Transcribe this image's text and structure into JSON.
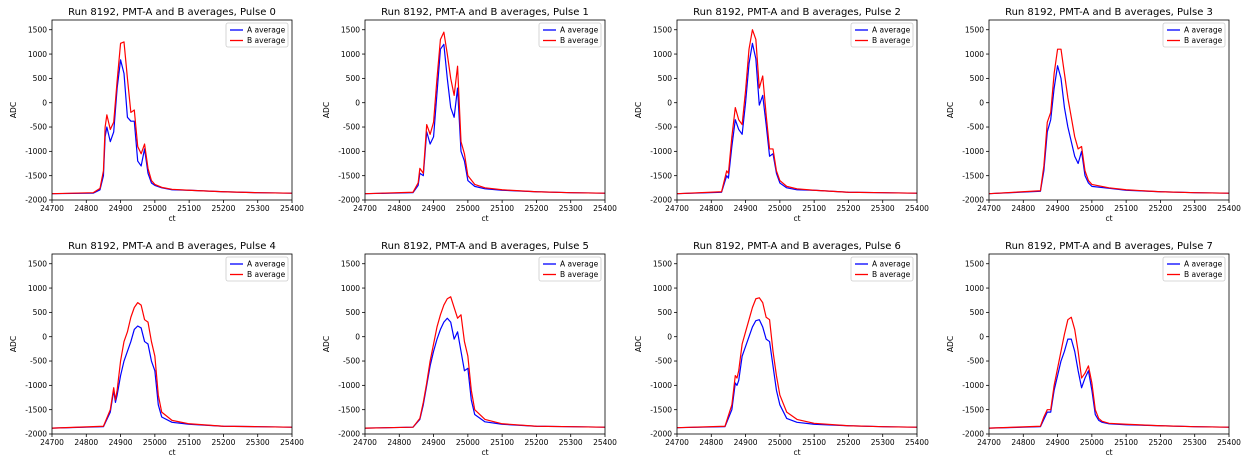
{
  "chart_data": [
    {
      "type": "line",
      "title": "Run 8192, PMT-A and B averages, Pulse 0",
      "xlabel": "ct",
      "ylabel": "ADC",
      "xlim": [
        24700,
        25400
      ],
      "ylim": [
        -2000,
        1700
      ],
      "xticks": [
        24700,
        24800,
        24900,
        25000,
        25100,
        25200,
        25300,
        25400
      ],
      "yticks": [
        -2000,
        -1500,
        -1000,
        -500,
        0,
        500,
        1000,
        1500
      ],
      "legend": "top-right",
      "x": [
        24700,
        24820,
        24840,
        24850,
        24855,
        24860,
        24870,
        24880,
        24890,
        24900,
        24910,
        24920,
        24930,
        24940,
        24950,
        24960,
        24970,
        24980,
        24990,
        25000,
        25020,
        25050,
        25100,
        25200,
        25300,
        25400
      ],
      "series": [
        {
          "name": "A average",
          "color": "#0000ff",
          "values": [
            -1870,
            -1860,
            -1790,
            -1500,
            -700,
            -500,
            -800,
            -600,
            300,
            880,
            600,
            -300,
            -380,
            -380,
            -1200,
            -1300,
            -950,
            -1450,
            -1650,
            -1700,
            -1750,
            -1790,
            -1800,
            -1830,
            -1850,
            -1860
          ]
        },
        {
          "name": "B average",
          "color": "#ff0000",
          "values": [
            -1870,
            -1850,
            -1760,
            -1400,
            -500,
            -250,
            -550,
            -400,
            450,
            1220,
            1250,
            500,
            -200,
            -150,
            -900,
            -1050,
            -850,
            -1350,
            -1600,
            -1680,
            -1740,
            -1780,
            -1800,
            -1830,
            -1850,
            -1860
          ]
        }
      ]
    },
    {
      "type": "line",
      "title": "Run 8192, PMT-A and B averages, Pulse 1",
      "xlabel": "ct",
      "ylabel": "ADC",
      "xlim": [
        24700,
        25400
      ],
      "ylim": [
        -2000,
        1700
      ],
      "xticks": [
        24700,
        24800,
        24900,
        25000,
        25100,
        25200,
        25300,
        25400
      ],
      "yticks": [
        -2000,
        -1500,
        -1000,
        -500,
        0,
        500,
        1000,
        1500
      ],
      "legend": "top-right",
      "x": [
        24700,
        24840,
        24855,
        24860,
        24870,
        24880,
        24890,
        24900,
        24910,
        24920,
        24930,
        24940,
        24950,
        24960,
        24970,
        24980,
        24990,
        25000,
        25020,
        25050,
        25100,
        25200,
        25300,
        25400
      ],
      "series": [
        {
          "name": "A average",
          "color": "#0000ff",
          "values": [
            -1870,
            -1850,
            -1700,
            -1450,
            -1500,
            -600,
            -850,
            -700,
            200,
            1100,
            1200,
            500,
            -100,
            -300,
            300,
            -1000,
            -1200,
            -1600,
            -1720,
            -1770,
            -1800,
            -1830,
            -1850,
            -1860
          ]
        },
        {
          "name": "B average",
          "color": "#ff0000",
          "values": [
            -1870,
            -1840,
            -1650,
            -1350,
            -1450,
            -450,
            -650,
            -400,
            500,
            1300,
            1450,
            1000,
            500,
            150,
            750,
            -800,
            -1050,
            -1500,
            -1680,
            -1750,
            -1790,
            -1830,
            -1850,
            -1860
          ]
        }
      ]
    },
    {
      "type": "line",
      "title": "Run 8192, PMT-A and B averages, Pulse 2",
      "xlabel": "ct",
      "ylabel": "ADC",
      "xlim": [
        24700,
        25400
      ],
      "ylim": [
        -2000,
        1700
      ],
      "xticks": [
        24700,
        24800,
        24900,
        25000,
        25100,
        25200,
        25300,
        25400
      ],
      "yticks": [
        -2000,
        -1500,
        -1000,
        -500,
        0,
        500,
        1000,
        1500
      ],
      "legend": "top-right",
      "x": [
        24700,
        24830,
        24845,
        24850,
        24860,
        24870,
        24880,
        24890,
        24900,
        24910,
        24920,
        24930,
        24940,
        24950,
        24960,
        24970,
        24980,
        24990,
        25000,
        25020,
        25050,
        25100,
        25200,
        25300,
        25400
      ],
      "series": [
        {
          "name": "A average",
          "color": "#0000ff",
          "values": [
            -1870,
            -1840,
            -1500,
            -1550,
            -900,
            -350,
            -550,
            -650,
            0,
            800,
            1220,
            900,
            -50,
            150,
            -450,
            -1100,
            -1050,
            -1450,
            -1650,
            -1750,
            -1790,
            -1800,
            -1840,
            -1850,
            -1860
          ]
        },
        {
          "name": "B average",
          "color": "#ff0000",
          "values": [
            -1870,
            -1830,
            -1400,
            -1450,
            -700,
            -100,
            -350,
            -450,
            250,
            1100,
            1500,
            1300,
            300,
            550,
            -250,
            -950,
            -950,
            -1400,
            -1600,
            -1720,
            -1770,
            -1800,
            -1840,
            -1850,
            -1860
          ]
        }
      ]
    },
    {
      "type": "line",
      "title": "Run 8192, PMT-A and B averages, Pulse 3",
      "xlabel": "ct",
      "ylabel": "ADC",
      "xlim": [
        24700,
        25400
      ],
      "ylim": [
        -2000,
        1700
      ],
      "xticks": [
        24700,
        24800,
        24900,
        25000,
        25100,
        25200,
        25300,
        25400
      ],
      "yticks": [
        -2000,
        -1500,
        -1000,
        -500,
        0,
        500,
        1000,
        1500
      ],
      "legend": "top-right",
      "x": [
        24700,
        24850,
        24860,
        24870,
        24880,
        24890,
        24900,
        24910,
        24920,
        24930,
        24940,
        24950,
        24960,
        24970,
        24980,
        24990,
        25000,
        25050,
        25100,
        25200,
        25300,
        25400
      ],
      "series": [
        {
          "name": "A average",
          "color": "#0000ff",
          "values": [
            -1870,
            -1820,
            -1400,
            -600,
            -350,
            300,
            760,
            500,
            -100,
            -500,
            -800,
            -1100,
            -1250,
            -1000,
            -1500,
            -1650,
            -1720,
            -1760,
            -1800,
            -1830,
            -1850,
            -1860
          ]
        },
        {
          "name": "B average",
          "color": "#ff0000",
          "values": [
            -1870,
            -1810,
            -1300,
            -400,
            -200,
            600,
            1100,
            1100,
            600,
            100,
            -300,
            -700,
            -950,
            -900,
            -1400,
            -1600,
            -1680,
            -1750,
            -1790,
            -1830,
            -1850,
            -1860
          ]
        }
      ]
    },
    {
      "type": "line",
      "title": "Run 8192, PMT-A and B averages, Pulse 4",
      "xlabel": "ct",
      "ylabel": "ADC",
      "xlim": [
        24700,
        25400
      ],
      "ylim": [
        -2000,
        1700
      ],
      "xticks": [
        24700,
        24800,
        24900,
        25000,
        25100,
        25200,
        25300,
        25400
      ],
      "yticks": [
        -2000,
        -1500,
        -1000,
        -500,
        0,
        500,
        1000,
        1500
      ],
      "legend": "top-right",
      "x": [
        24700,
        24850,
        24870,
        24880,
        24885,
        24890,
        24900,
        24910,
        24920,
        24930,
        24940,
        24950,
        24960,
        24970,
        24980,
        24990,
        25000,
        25010,
        25020,
        25050,
        25100,
        25200,
        25300,
        25400
      ],
      "series": [
        {
          "name": "A average",
          "color": "#0000ff",
          "values": [
            -1880,
            -1850,
            -1550,
            -1100,
            -1350,
            -1200,
            -800,
            -500,
            -300,
            -100,
            150,
            220,
            180,
            -100,
            -150,
            -500,
            -700,
            -1400,
            -1650,
            -1760,
            -1800,
            -1840,
            -1850,
            -1860
          ]
        },
        {
          "name": "B average",
          "color": "#ff0000",
          "values": [
            -1880,
            -1840,
            -1500,
            -1050,
            -1300,
            -1100,
            -500,
            -100,
            100,
            400,
            600,
            700,
            650,
            350,
            300,
            -100,
            -400,
            -1200,
            -1550,
            -1720,
            -1790,
            -1840,
            -1850,
            -1860
          ]
        }
      ]
    },
    {
      "type": "line",
      "title": "Run 8192, PMT-A and B averages, Pulse 5",
      "xlabel": "ct",
      "ylabel": "ADC",
      "xlim": [
        24700,
        25400
      ],
      "ylim": [
        -2000,
        1700
      ],
      "xticks": [
        24700,
        24800,
        24900,
        25000,
        25100,
        25200,
        25300,
        25400
      ],
      "yticks": [
        -2000,
        -1500,
        -1000,
        -500,
        0,
        500,
        1000,
        1500
      ],
      "legend": "top-right",
      "x": [
        24700,
        24840,
        24860,
        24870,
        24880,
        24890,
        24900,
        24910,
        24920,
        24930,
        24940,
        24950,
        24960,
        24970,
        24980,
        24990,
        25000,
        25010,
        25020,
        25050,
        25100,
        25200,
        25300,
        25400
      ],
      "series": [
        {
          "name": "A average",
          "color": "#0000ff",
          "values": [
            -1880,
            -1860,
            -1700,
            -1400,
            -1000,
            -600,
            -300,
            -50,
            150,
            300,
            380,
            300,
            -50,
            100,
            -300,
            -700,
            -650,
            -1300,
            -1600,
            -1750,
            -1800,
            -1840,
            -1850,
            -1860
          ]
        },
        {
          "name": "B average",
          "color": "#ff0000",
          "values": [
            -1880,
            -1860,
            -1680,
            -1350,
            -950,
            -500,
            -150,
            200,
            450,
            650,
            780,
            820,
            600,
            380,
            450,
            -100,
            -400,
            -1100,
            -1500,
            -1700,
            -1790,
            -1840,
            -1850,
            -1860
          ]
        }
      ]
    },
    {
      "type": "line",
      "title": "Run 8192, PMT-A and B averages, Pulse 6",
      "xlabel": "ct",
      "ylabel": "ADC",
      "xlim": [
        24700,
        25400
      ],
      "ylim": [
        -2000,
        1700
      ],
      "xticks": [
        24700,
        24800,
        24900,
        25000,
        25100,
        25200,
        25300,
        25400
      ],
      "yticks": [
        -2000,
        -1500,
        -1000,
        -500,
        0,
        500,
        1000,
        1500
      ],
      "legend": "top-right",
      "x": [
        24700,
        24840,
        24860,
        24870,
        24875,
        24880,
        24890,
        24900,
        24910,
        24920,
        24930,
        24940,
        24950,
        24960,
        24970,
        24980,
        24990,
        25000,
        25020,
        25050,
        25100,
        25200,
        25300,
        25400
      ],
      "series": [
        {
          "name": "A average",
          "color": "#0000ff",
          "values": [
            -1870,
            -1850,
            -1500,
            -950,
            -1000,
            -900,
            -400,
            -200,
            0,
            200,
            330,
            350,
            200,
            -50,
            -100,
            -600,
            -1100,
            -1400,
            -1680,
            -1760,
            -1800,
            -1830,
            -1850,
            -1860
          ]
        },
        {
          "name": "B average",
          "color": "#ff0000",
          "values": [
            -1870,
            -1840,
            -1400,
            -800,
            -850,
            -700,
            -150,
            100,
            350,
            600,
            780,
            800,
            700,
            400,
            350,
            -300,
            -800,
            -1200,
            -1550,
            -1700,
            -1780,
            -1830,
            -1850,
            -1860
          ]
        }
      ]
    },
    {
      "type": "line",
      "title": "Run 8192, PMT-A and B averages, Pulse 7",
      "xlabel": "ct",
      "ylabel": "ADC",
      "xlim": [
        24700,
        25400
      ],
      "ylim": [
        -2000,
        1700
      ],
      "xticks": [
        24700,
        24800,
        24900,
        25000,
        25100,
        25200,
        25300,
        25400
      ],
      "yticks": [
        -2000,
        -1500,
        -1000,
        -500,
        0,
        500,
        1000,
        1500
      ],
      "legend": "top-right",
      "x": [
        24700,
        24850,
        24860,
        24870,
        24880,
        24890,
        24900,
        24910,
        24920,
        24930,
        24940,
        24950,
        24960,
        24970,
        24980,
        24990,
        25000,
        25010,
        25020,
        25030,
        25050,
        25100,
        25200,
        25300,
        25400
      ],
      "series": [
        {
          "name": "A average",
          "color": "#0000ff",
          "values": [
            -1880,
            -1850,
            -1700,
            -1550,
            -1550,
            -1100,
            -800,
            -500,
            -300,
            -50,
            -50,
            -300,
            -700,
            -1050,
            -850,
            -700,
            -1100,
            -1600,
            -1720,
            -1760,
            -1790,
            -1810,
            -1830,
            -1850,
            -1860
          ]
        },
        {
          "name": "B average",
          "color": "#ff0000",
          "values": [
            -1880,
            -1840,
            -1650,
            -1500,
            -1500,
            -1000,
            -650,
            -300,
            50,
            350,
            400,
            150,
            -300,
            -850,
            -750,
            -600,
            -950,
            -1500,
            -1680,
            -1740,
            -1780,
            -1800,
            -1830,
            -1850,
            -1860
          ]
        }
      ]
    }
  ]
}
